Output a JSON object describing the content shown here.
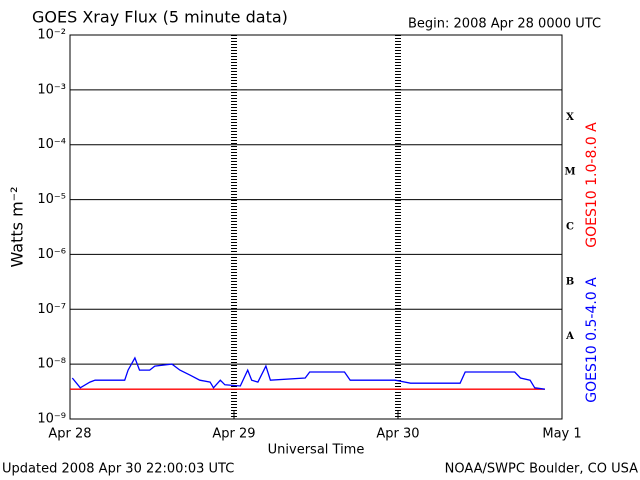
{
  "chart_data": {
    "type": "line",
    "title": "GOES Xray Flux (5 minute data)",
    "subtitle": "Begin:  2008 Apr 28 0000 UTC",
    "ylabel": "Watts m⁻²",
    "xlabel": "Universal Time",
    "footer_left": "Updated 2008 Apr 30 22:00:03 UTC",
    "footer_right": "NOAA/SWPC Boulder, CO USA",
    "log_scale": true,
    "grid": true,
    "ylim": [
      1e-09,
      0.01
    ],
    "yticks": [
      {
        "value": 0.01,
        "label": "10⁻²"
      },
      {
        "value": 0.001,
        "label": "10⁻³"
      },
      {
        "value": 0.0001,
        "label": "10⁻⁴"
      },
      {
        "value": 1e-05,
        "label": "10⁻⁵"
      },
      {
        "value": 1e-06,
        "label": "10⁻⁶"
      },
      {
        "value": 1e-07,
        "label": "10⁻⁷"
      },
      {
        "value": 1e-08,
        "label": "10⁻⁸"
      },
      {
        "value": 1e-09,
        "label": "10⁻⁹"
      }
    ],
    "xlim": [
      "2008-04-28T00:00Z",
      "2008-05-01T00:00Z"
    ],
    "xticks": [
      {
        "value": "2008-04-28T00:00Z",
        "label": "Apr 28"
      },
      {
        "value": "2008-04-29T00:00Z",
        "label": "Apr 29"
      },
      {
        "value": "2008-04-30T00:00Z",
        "label": "Apr 30"
      },
      {
        "value": "2008-05-01T00:00Z",
        "label": "May 1"
      }
    ],
    "class_labels": [
      "X",
      "M",
      "C",
      "B",
      "A"
    ],
    "series": [
      {
        "name": "GOES10 1.0-8.0 A",
        "color": "#ff0000",
        "x": [
          "2008-04-28T00:00Z",
          "2008-04-30T21:30Z"
        ],
        "values": [
          3.5e-09,
          3.5e-09
        ]
      },
      {
        "name": "GOES10 0.5-4.0 A",
        "color": "#0000ff",
        "x": [
          "2008-04-28T00:20Z",
          "2008-04-28T01:30Z",
          "2008-04-28T02:55Z",
          "2008-04-28T03:40Z",
          "2008-04-28T08:00Z",
          "2008-04-28T08:30Z",
          "2008-04-28T09:30Z",
          "2008-04-28T10:10Z",
          "2008-04-28T11:40Z",
          "2008-04-28T12:25Z",
          "2008-04-28T14:55Z",
          "2008-04-28T16:05Z",
          "2008-04-28T17:35Z",
          "2008-04-28T19:00Z",
          "2008-04-28T20:30Z",
          "2008-04-28T21:00Z",
          "2008-04-28T22:00Z",
          "2008-04-28T22:40Z",
          "2008-04-29T00:55Z",
          "2008-04-29T02:00Z",
          "2008-04-29T02:35Z",
          "2008-04-29T03:30Z",
          "2008-04-29T04:40Z",
          "2008-04-29T05:20Z",
          "2008-04-29T10:25Z",
          "2008-04-29T11:05Z",
          "2008-04-29T16:10Z",
          "2008-04-29T17:00Z",
          "2008-04-29T23:35Z",
          "2008-04-30T01:50Z",
          "2008-04-30T09:05Z",
          "2008-04-30T09:50Z",
          "2008-04-30T17:05Z",
          "2008-04-30T17:55Z",
          "2008-04-30T19:20Z",
          "2008-04-30T20:00Z",
          "2008-04-30T21:30Z"
        ],
        "values": [
          5.6e-09,
          3.7e-09,
          4.7e-09,
          5.1e-09,
          5.1e-09,
          7.8e-09,
          1.3e-08,
          7.8e-09,
          7.8e-09,
          9.2e-09,
          1e-08,
          7.8e-09,
          6.3e-09,
          5.1e-09,
          4.7e-09,
          3.7e-09,
          5.1e-09,
          4.2e-09,
          4e-09,
          7.8e-09,
          5.1e-09,
          4.7e-09,
          9.2e-09,
          5.1e-09,
          5.6e-09,
          7.2e-09,
          7.2e-09,
          5.1e-09,
          5.1e-09,
          4.5e-09,
          4.5e-09,
          7.2e-09,
          7.2e-09,
          5.6e-09,
          5.1e-09,
          3.7e-09,
          3.5e-09
        ]
      }
    ]
  }
}
